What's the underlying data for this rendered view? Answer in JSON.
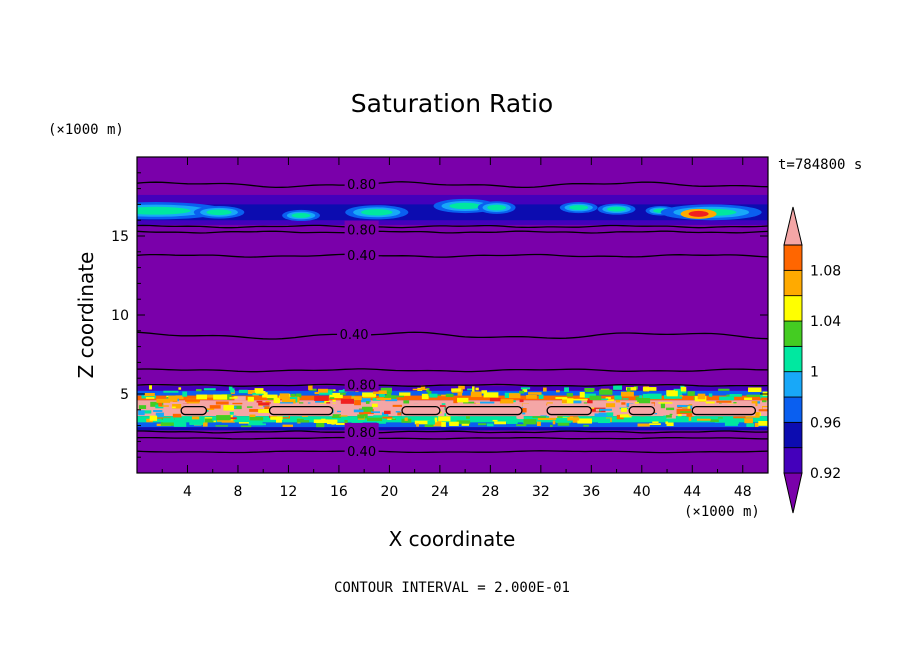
{
  "chart_data": {
    "type": "heatmap",
    "title": "Saturation Ratio",
    "xlabel": "X coordinate",
    "ylabel": "Z coordinate",
    "x_unit": "(×1000 m)",
    "y_unit": "(×1000 m)",
    "time_label": "t=784800 s",
    "footer": "CONTOUR INTERVAL = 2.000E-01",
    "xlim": [
      0,
      50
    ],
    "ylim": [
      0,
      20
    ],
    "x_ticks": [
      4,
      8,
      12,
      16,
      20,
      24,
      28,
      32,
      36,
      40,
      44,
      48
    ],
    "y_ticks": [
      5,
      10,
      15
    ],
    "colorbar": {
      "levels": [
        0.92,
        0.94,
        0.96,
        0.98,
        1.0,
        1.02,
        1.04,
        1.06,
        1.08,
        1.1
      ],
      "tick_labels": [
        "0.92",
        "0.96",
        "1",
        "1.04",
        "1.08"
      ],
      "colors": [
        "#7a00aa",
        "#4400bb",
        "#0c0cb0",
        "#0a5ff0",
        "#18a8f8",
        "#00e8a0",
        "#44cc22",
        "#ffff00",
        "#ffaa00",
        "#ff6600",
        "#f02020",
        "#f4a6a6"
      ]
    },
    "contour_labels": [
      {
        "x": 17.8,
        "y": 18.3,
        "text": "0.80"
      },
      {
        "x": 17.8,
        "y": 15.4,
        "text": "0.80"
      },
      {
        "x": 17.8,
        "y": 13.8,
        "text": "0.40"
      },
      {
        "x": 17.2,
        "y": 8.8,
        "text": "0.40"
      },
      {
        "x": 17.8,
        "y": 5.6,
        "text": "0.80"
      },
      {
        "x": 17.8,
        "y": 2.6,
        "text": "0.80"
      },
      {
        "x": 17.8,
        "y": 1.4,
        "text": "0.40"
      }
    ]
  }
}
